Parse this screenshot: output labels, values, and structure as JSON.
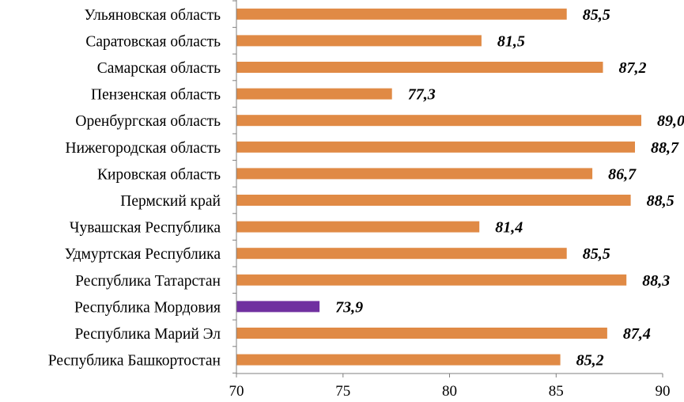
{
  "chart_data": {
    "type": "bar",
    "orientation": "horizontal",
    "categories": [
      "Ульяновская область",
      "Саратовская область",
      "Самарская область",
      "Пензенская область",
      "Оренбургская область",
      "Нижегородская область",
      "Кировская область",
      "Пермский край",
      "Чувашская Республика",
      "Удмуртская Республика",
      "Республика Татарстан",
      "Республика Мордовия",
      "Республика Марий  Эл",
      "Республика Башкортостан"
    ],
    "values": [
      85.5,
      81.5,
      87.2,
      77.3,
      89.0,
      88.7,
      86.7,
      88.5,
      81.4,
      85.5,
      88.3,
      73.9,
      87.4,
      85.2
    ],
    "value_labels": [
      "85,5",
      "81,5",
      "87,2",
      "77,3",
      "89,0",
      "88,7",
      "86,7",
      "88,5",
      "81,4",
      "85,5",
      "88,3",
      "73,9",
      "87,4",
      "85,2"
    ],
    "bar_colors": [
      "#E08A45",
      "#E08A45",
      "#E08A45",
      "#E08A45",
      "#E08A45",
      "#E08A45",
      "#E08A45",
      "#E08A45",
      "#E08A45",
      "#E08A45",
      "#E08A45",
      "#7030A0",
      "#E08A45",
      "#E08A45"
    ],
    "x_ticks": [
      "70",
      "75",
      "80",
      "85",
      "90"
    ],
    "xlim": [
      70,
      90
    ],
    "title": "",
    "xlabel": "",
    "ylabel": "",
    "grid": false,
    "legend": "none"
  }
}
